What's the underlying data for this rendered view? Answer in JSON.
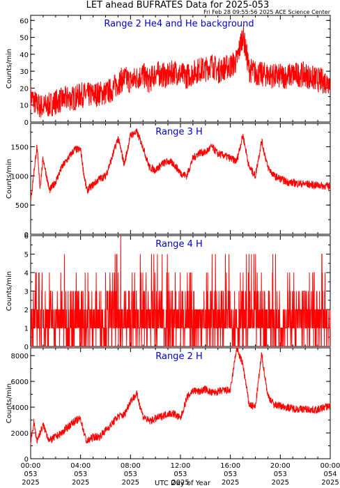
{
  "title": "LET ahead BUFRATES Data for 2025-053",
  "timestamp": "Fri Feb 28 09:55:56 2025 ACE Science Center",
  "x_axis_label": "UTC Day of Year",
  "colors": {
    "series": "#ff0000",
    "panel_label": "#0000cc",
    "axis": "#000000"
  },
  "chart_data": [
    {
      "type": "line",
      "panel_label": "Range 2 He4 and He background",
      "ylabel": "Counts/min",
      "ylim": [
        0,
        63
      ],
      "yticks": [
        "0",
        "10",
        "20",
        "30",
        "40",
        "50",
        "60"
      ],
      "series": [
        {
          "x": [
            0,
            0.5,
            1,
            1.5,
            2,
            2.5,
            3,
            3.5,
            4,
            4.5,
            5,
            5.5,
            6,
            6.5,
            7,
            7.5,
            8,
            8.5,
            9,
            9.5,
            10,
            10.5,
            11,
            11.5,
            12,
            12.5,
            13,
            13.5,
            14,
            14.5,
            15,
            15.5,
            16,
            16.5,
            17,
            17.5,
            18,
            18.5,
            19,
            19.5,
            20,
            20.5,
            21,
            21.5,
            22,
            22.5,
            23,
            23.5,
            24
          ],
          "values": [
            15,
            10,
            9,
            10,
            12,
            13,
            14,
            14,
            16,
            16,
            16,
            17,
            17,
            19,
            23,
            26,
            24,
            26,
            28,
            24,
            29,
            28,
            27,
            30,
            28,
            27,
            29,
            31,
            31,
            34,
            30,
            32,
            33,
            36,
            52,
            31,
            29,
            28,
            28,
            27,
            27,
            27,
            28,
            28,
            28,
            26,
            25,
            24,
            24
          ]
        }
      ]
    },
    {
      "type": "line",
      "panel_label": "Range 3 H",
      "ylabel": "Counts/min",
      "ylim": [
        0,
        1900
      ],
      "yticks": [
        "0",
        "500",
        "1000",
        "1500"
      ],
      "series": [
        {
          "x": [
            0,
            0.25,
            0.5,
            0.75,
            1,
            1.5,
            2,
            2.5,
            3,
            3.5,
            4,
            4.25,
            4.5,
            5,
            5.5,
            6,
            6.5,
            7,
            7.5,
            8,
            8.5,
            9,
            9.5,
            10,
            10.5,
            11,
            11.5,
            12,
            12.5,
            13,
            13.5,
            14,
            14.5,
            15,
            15.5,
            16,
            16.5,
            17,
            17.5,
            18,
            18.5,
            19,
            19.5,
            20,
            20.5,
            21,
            21.5,
            22,
            22.5,
            23,
            23.5,
            24
          ],
          "values": [
            550,
            1050,
            1500,
            800,
            1300,
            750,
            900,
            1150,
            1300,
            1450,
            1450,
            1050,
            750,
            850,
            950,
            1000,
            1300,
            1650,
            1200,
            1700,
            1750,
            1500,
            1150,
            1100,
            1200,
            1250,
            1200,
            1050,
            1000,
            1300,
            1400,
            1400,
            1500,
            1380,
            1350,
            1300,
            1250,
            1700,
            1150,
            1000,
            1600,
            1150,
            1000,
            950,
            900,
            880,
            870,
            860,
            850,
            840,
            830,
            820
          ]
        }
      ]
    },
    {
      "type": "line",
      "panel_label": "Range 4 H",
      "ylabel": "Counts/min",
      "ylim": [
        0,
        6
      ],
      "yticks": [
        "0",
        "1",
        "2",
        "3",
        "4",
        "5",
        "6"
      ],
      "series": [
        {
          "x": [],
          "values": []
        }
      ]
    },
    {
      "type": "line",
      "panel_label": "Range 2 H",
      "ylabel": "Counts/min",
      "ylim": [
        0,
        8600
      ],
      "yticks": [
        "0",
        "2000",
        "4000",
        "6000",
        "8000"
      ],
      "series": [
        {
          "x": [
            0,
            0.25,
            0.5,
            1,
            1.5,
            2,
            2.5,
            3,
            3.5,
            4,
            4.25,
            4.5,
            5,
            5.5,
            6,
            6.5,
            7,
            7.5,
            8,
            8.5,
            9,
            9.5,
            10,
            10.5,
            11,
            11.5,
            12,
            12.5,
            13,
            13.5,
            14,
            14.5,
            15,
            15.5,
            16,
            16.5,
            17,
            17.5,
            18,
            18.5,
            19,
            19.5,
            20,
            20.5,
            21,
            21.5,
            22,
            22.5,
            23,
            23.5,
            24
          ],
          "values": [
            1200,
            2800,
            1400,
            2600,
            1400,
            1700,
            2000,
            2500,
            2900,
            3100,
            2100,
            1300,
            1700,
            1700,
            2200,
            2700,
            3300,
            3400,
            4500,
            5000,
            3300,
            2900,
            3100,
            3300,
            3500,
            3500,
            3100,
            4700,
            5300,
            5200,
            5400,
            5100,
            5200,
            5300,
            5300,
            8600,
            7300,
            4200,
            4000,
            8100,
            4900,
            4200,
            4100,
            4000,
            3900,
            3850,
            3850,
            3800,
            3800,
            4000,
            4100
          ]
        }
      ]
    }
  ],
  "x_ticks": [
    {
      "time": "00:00",
      "day": "053",
      "year": "2025"
    },
    {
      "time": "04:00",
      "day": "053",
      "year": "2025"
    },
    {
      "time": "08:00",
      "day": "053",
      "year": "2025"
    },
    {
      "time": "12:00",
      "day": "053",
      "year": "2025"
    },
    {
      "time": "16:00",
      "day": "053",
      "year": "2025"
    },
    {
      "time": "20:00",
      "day": "053",
      "year": "2025"
    },
    {
      "time": "00:00",
      "day": "054",
      "year": "2025"
    }
  ],
  "x_range_hours": [
    0,
    24
  ]
}
